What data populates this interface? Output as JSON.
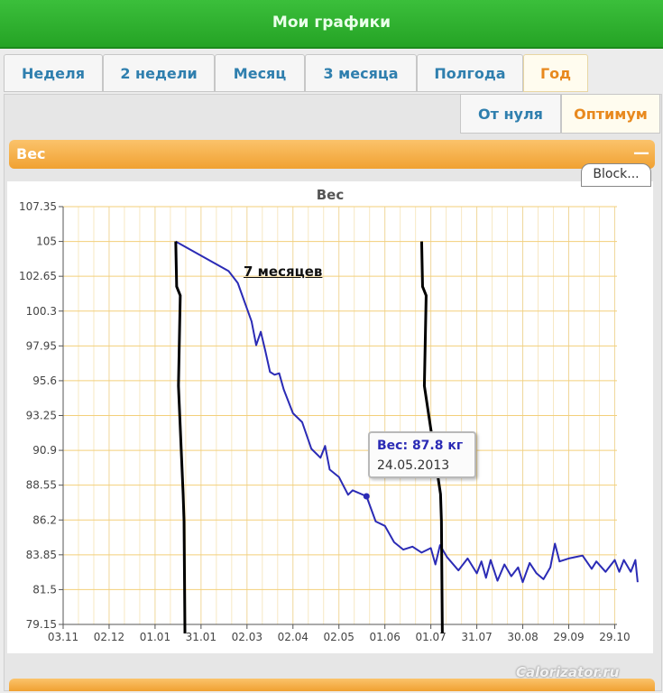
{
  "header": {
    "title": "Мои графики"
  },
  "tabs": [
    {
      "label": "Неделя",
      "active": false
    },
    {
      "label": "2 недели",
      "active": false
    },
    {
      "label": "Месяц",
      "active": false
    },
    {
      "label": "3 месяца",
      "active": false
    },
    {
      "label": "Полгода",
      "active": false
    },
    {
      "label": "Год",
      "active": true
    }
  ],
  "subtabs": [
    {
      "label": "От нуля",
      "active": false
    },
    {
      "label": "Оптимум",
      "active": true
    }
  ],
  "panel": {
    "label": "Вес",
    "block_label": "Block..."
  },
  "tooltip": {
    "value": "Вес: 87.8 кг",
    "date": "24.05.2013"
  },
  "annotation": "7 месяцев",
  "watermark": "Calorizator.ru",
  "colors": {
    "line": "#2b2bb5",
    "tab_active": "#e8891e",
    "header": "#2db32d",
    "grid": "#f3cf7a"
  },
  "chart_data": {
    "type": "line",
    "title": "Вес",
    "yticks": [
      79.15,
      81.5,
      83.85,
      86.2,
      88.55,
      90.9,
      93.25,
      95.6,
      97.95,
      100.3,
      102.65,
      105,
      107.35
    ],
    "ylim": [
      79.15,
      107.35
    ],
    "xticks": [
      "03.11",
      "02.12",
      "01.01",
      "31.01",
      "02.03",
      "02.04",
      "02.05",
      "01.06",
      "01.07",
      "31.07",
      "30.08",
      "29.09",
      "29.10"
    ],
    "series": [
      {
        "values": [
          [
            2.45,
            105
          ],
          [
            3.6,
            103.0
          ],
          [
            3.8,
            102.2
          ],
          [
            4.1,
            99.6
          ],
          [
            4.2,
            98.0
          ],
          [
            4.3,
            98.9
          ],
          [
            4.4,
            97.6
          ],
          [
            4.5,
            96.2
          ],
          [
            4.6,
            96.0
          ],
          [
            4.7,
            96.1
          ],
          [
            4.8,
            95.0
          ],
          [
            5.0,
            93.4
          ],
          [
            5.2,
            92.8
          ],
          [
            5.4,
            91.0
          ],
          [
            5.6,
            90.4
          ],
          [
            5.7,
            91.2
          ],
          [
            5.8,
            89.6
          ],
          [
            6.0,
            89.1
          ],
          [
            6.2,
            87.9
          ],
          [
            6.3,
            88.2
          ],
          [
            6.6,
            87.8
          ],
          [
            6.8,
            86.1
          ],
          [
            7.0,
            85.8
          ],
          [
            7.2,
            84.7
          ],
          [
            7.4,
            84.2
          ],
          [
            7.6,
            84.4
          ],
          [
            7.8,
            84.0
          ],
          [
            8.0,
            84.3
          ],
          [
            8.1,
            83.2
          ],
          [
            8.2,
            84.5
          ],
          [
            8.35,
            83.7
          ],
          [
            8.6,
            82.8
          ],
          [
            8.8,
            83.6
          ],
          [
            9.0,
            82.6
          ],
          [
            9.1,
            83.4
          ],
          [
            9.2,
            82.3
          ],
          [
            9.3,
            83.5
          ],
          [
            9.45,
            82.1
          ],
          [
            9.6,
            83.2
          ],
          [
            9.75,
            82.4
          ],
          [
            9.9,
            83.0
          ],
          [
            10.0,
            82.0
          ],
          [
            10.15,
            83.3
          ],
          [
            10.3,
            82.6
          ],
          [
            10.45,
            82.2
          ],
          [
            10.6,
            83.0
          ],
          [
            10.7,
            84.6
          ],
          [
            10.8,
            83.4
          ],
          [
            11.0,
            83.6
          ],
          [
            11.3,
            83.8
          ],
          [
            11.5,
            82.9
          ],
          [
            11.6,
            83.4
          ],
          [
            11.8,
            82.7
          ],
          [
            12.0,
            83.5
          ],
          [
            12.1,
            82.7
          ],
          [
            12.2,
            83.5
          ],
          [
            12.35,
            82.7
          ],
          [
            12.45,
            83.5
          ],
          [
            12.5,
            82.0
          ]
        ]
      }
    ],
    "highlight": {
      "x": 6.6,
      "y": 87.8
    },
    "markers": [
      {
        "x_top": 2.45,
        "x_bottom": 2.65,
        "y_top": 105
      },
      {
        "x_top": 7.8,
        "x_bottom": 8.25,
        "y_top": 105
      }
    ],
    "grid": true
  }
}
